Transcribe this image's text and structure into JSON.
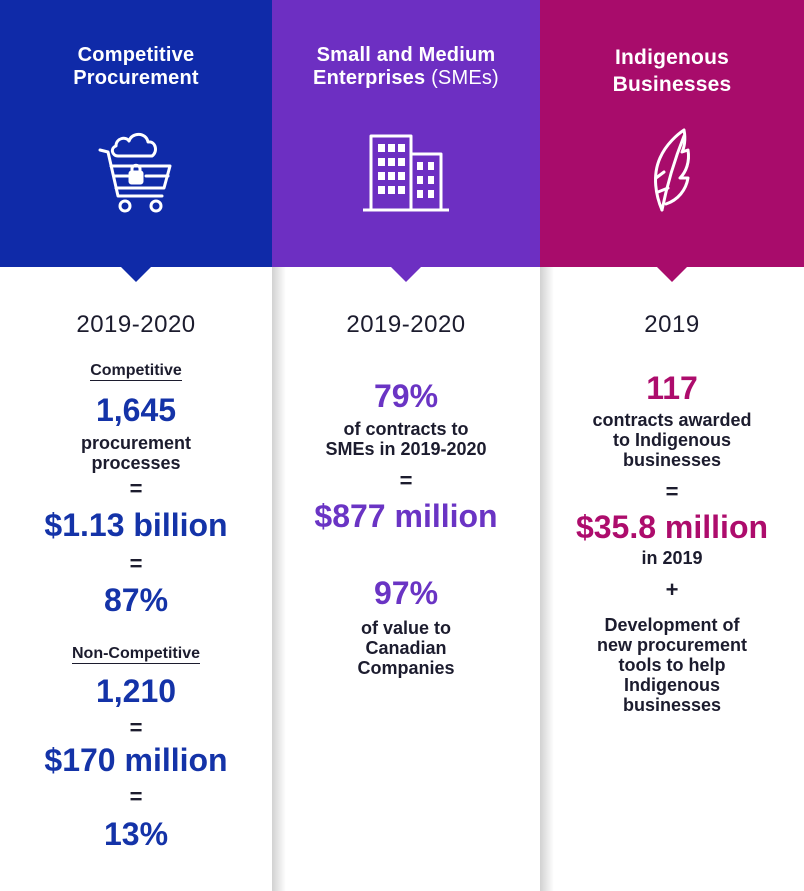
{
  "colors": {
    "blue": "#0f2aa8",
    "purple": "#6d2fc2",
    "magenta": "#a80c6b"
  },
  "col1": {
    "title_line1": "Competitive",
    "title_line2": "Procurement",
    "icon": "shopping-cart-cloud-lock-icon",
    "year": "2019-2020",
    "competitive_label": "Competitive",
    "competitive_count": "1,645",
    "competitive_desc_line1": "procurement",
    "competitive_desc_line2": "processes",
    "eq": "=",
    "competitive_value": "$1.13 billion",
    "competitive_pct": "87%",
    "noncompetitive_label": "Non-Competitive",
    "noncompetitive_count": "1,210",
    "noncompetitive_value": "$170 million",
    "noncompetitive_pct": "13%"
  },
  "col2": {
    "title_line1": "Small and Medium",
    "title_line2_bold": "Enterprises",
    "title_line2_light": "(SMEs)",
    "icon": "office-building-icon",
    "year": "2019-2020",
    "pct1": "79%",
    "desc1_line1": "of contracts to",
    "desc1_line2": "SMEs in 2019-2020",
    "eq": "=",
    "value": "$877 million",
    "pct2": "97%",
    "desc2_line1": "of value to",
    "desc2_line2": "Canadian",
    "desc2_line3": "Companies"
  },
  "col3": {
    "title_line1": "Indigenous",
    "title_line2": "Businesses",
    "icon": "feather-icon",
    "year": "2019",
    "count": "117",
    "desc_line1": "contracts awarded",
    "desc_line2": "to Indigenous",
    "desc_line3": "businesses",
    "eq": "=",
    "value": "$35.8 million",
    "value_year": "in 2019",
    "plus": "+",
    "dev_line1": "Development of",
    "dev_line2": "new procurement",
    "dev_line3": "tools to help",
    "dev_line4": "Indigenous",
    "dev_line5": "businesses"
  }
}
